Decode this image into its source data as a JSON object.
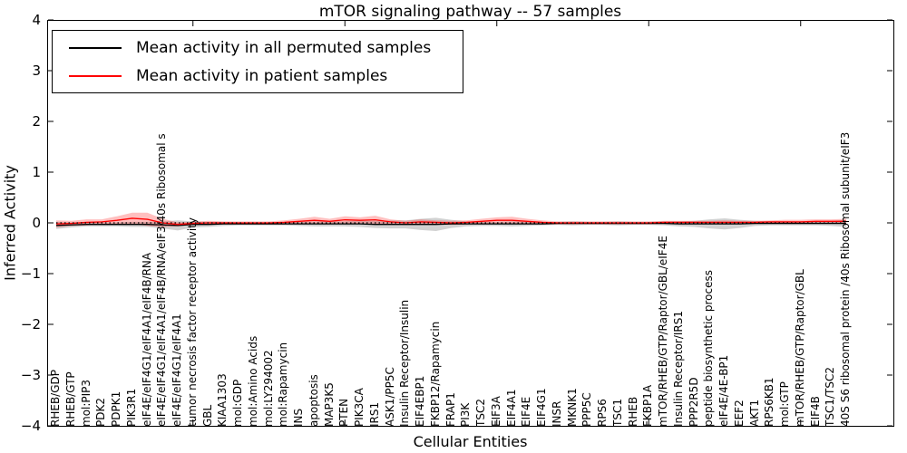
{
  "title": "mTOR signaling pathway -- 57 samples",
  "legend": {
    "entries": [
      {
        "label": "Mean activity in all permuted samples",
        "color": "#000000"
      },
      {
        "label": "Mean activity in patient samples",
        "color": "#ff0000"
      }
    ],
    "position": "upper left"
  },
  "chart_data": {
    "type": "line",
    "title": "mTOR signaling pathway -- 57 samples",
    "xlabel": "Cellular Entities",
    "ylabel": "Inferred Activity",
    "ylim": [
      -4,
      4
    ],
    "yticks": [
      4,
      3,
      2,
      1,
      0,
      -1,
      -2,
      -3,
      -4
    ],
    "grid": false,
    "legend_position": "upper left",
    "zero_line": {
      "style": "dotted",
      "color": "#000000",
      "y": 0
    },
    "categories": [
      "RHEB/GDP",
      "RHEB/GTP",
      "mol:PIP3",
      "PDK2",
      "PDPK1",
      "PIK3R1",
      "eIF4E/eIF4G1/eIF4A1/eIF4B/RNA",
      "eIF4E/eIF4G1/eIF4A1/eIF4B/RNA/eIF3/40s Ribosomal s",
      "eIF4E/eIF4G1/eIF4A1",
      "tumor necrosis factor receptor activity",
      "GBL",
      "KIAA1303",
      "mol:GDP",
      "mol:Amino Acids",
      "mol:LY294002",
      "mol:Rapamycin",
      "INS",
      "apoptosis",
      "MAP3K5",
      "PTEN",
      "PIK3CA",
      "IRS1",
      "ASK1/PP5C",
      "Insulin Receptor/Insulin",
      "EIF4EBP1",
      "FKBP12/Rapamycin",
      "FRAP1",
      "PI3K",
      "TSC2",
      "EIF3A",
      "EIF4A1",
      "EIF4E",
      "EIF4G1",
      "INSR",
      "MKNK1",
      "PPP5C",
      "RPS6",
      "TSC1",
      "RHEB",
      "FKBP1A",
      "mTOR/RHEB/GTP/Raptor/GBL/eIF4E",
      "Insulin Receptor/IRS1",
      "PPP2R5D",
      "peptide biosynthetic process",
      "eIF4E/4E-BP1",
      "EEF2",
      "AKT1",
      "RPS6KB1",
      "mol:GTP",
      "mTOR/RHEB/GTP/Raptor/GBL",
      "EIF4B",
      "TSC1/TSC2",
      "40S S6 ribosomal protein /40s Ribosomal subunit/eIF3"
    ],
    "series": [
      {
        "name": "Mean activity in all permuted samples",
        "color": "#000000",
        "band_color": "rgba(0,0,0,0.18)",
        "values": [
          -0.05,
          -0.04,
          -0.03,
          -0.03,
          -0.03,
          -0.03,
          -0.03,
          -0.04,
          -0.05,
          -0.03,
          -0.03,
          -0.02,
          -0.02,
          -0.02,
          -0.02,
          -0.02,
          -0.02,
          -0.02,
          -0.02,
          -0.02,
          -0.02,
          -0.03,
          -0.03,
          -0.03,
          -0.03,
          -0.03,
          -0.02,
          -0.02,
          -0.02,
          -0.02,
          -0.02,
          -0.02,
          -0.02,
          -0.01,
          -0.01,
          -0.01,
          -0.01,
          -0.01,
          -0.01,
          -0.01,
          -0.01,
          -0.02,
          -0.02,
          -0.02,
          -0.02,
          -0.02,
          -0.01,
          -0.01,
          -0.01,
          -0.01,
          -0.01,
          -0.01,
          -0.01
        ],
        "band_halfwidth": [
          0.07,
          0.05,
          0.04,
          0.04,
          0.04,
          0.05,
          0.05,
          0.07,
          0.1,
          0.06,
          0.05,
          0.04,
          0.03,
          0.03,
          0.03,
          0.03,
          0.04,
          0.05,
          0.05,
          0.05,
          0.06,
          0.07,
          0.08,
          0.08,
          0.11,
          0.13,
          0.08,
          0.05,
          0.04,
          0.04,
          0.05,
          0.04,
          0.03,
          0.03,
          0.04,
          0.03,
          0.03,
          0.04,
          0.03,
          0.03,
          0.04,
          0.05,
          0.06,
          0.09,
          0.11,
          0.08,
          0.05,
          0.04,
          0.04,
          0.04,
          0.04,
          0.05,
          0.07
        ]
      },
      {
        "name": "Mean activity in patient samples",
        "color": "#ff0000",
        "band_color": "rgba(255,0,0,0.25)",
        "values": [
          -0.02,
          -0.01,
          0.01,
          0.02,
          0.05,
          0.09,
          0.07,
          0.0,
          -0.03,
          -0.01,
          0.0,
          0.0,
          0.0,
          0.0,
          0.0,
          0.01,
          0.03,
          0.05,
          0.03,
          0.06,
          0.05,
          0.06,
          0.02,
          0.0,
          0.02,
          0.01,
          0.0,
          0.01,
          0.03,
          0.05,
          0.05,
          0.03,
          0.01,
          0.0,
          0.0,
          0.0,
          0.0,
          0.0,
          0.0,
          0.0,
          0.01,
          0.01,
          0.01,
          0.01,
          0.01,
          0.01,
          0.01,
          0.02,
          0.02,
          0.02,
          0.03,
          0.03,
          0.03
        ],
        "band_halfwidth": [
          0.07,
          0.05,
          0.06,
          0.05,
          0.08,
          0.11,
          0.13,
          0.08,
          0.04,
          0.03,
          0.04,
          0.03,
          0.03,
          0.03,
          0.03,
          0.04,
          0.05,
          0.07,
          0.05,
          0.07,
          0.06,
          0.08,
          0.05,
          0.04,
          0.05,
          0.04,
          0.04,
          0.04,
          0.05,
          0.06,
          0.07,
          0.05,
          0.04,
          0.03,
          0.03,
          0.03,
          0.03,
          0.03,
          0.03,
          0.03,
          0.03,
          0.03,
          0.03,
          0.03,
          0.04,
          0.03,
          0.03,
          0.03,
          0.04,
          0.04,
          0.04,
          0.04,
          0.05
        ]
      }
    ]
  }
}
